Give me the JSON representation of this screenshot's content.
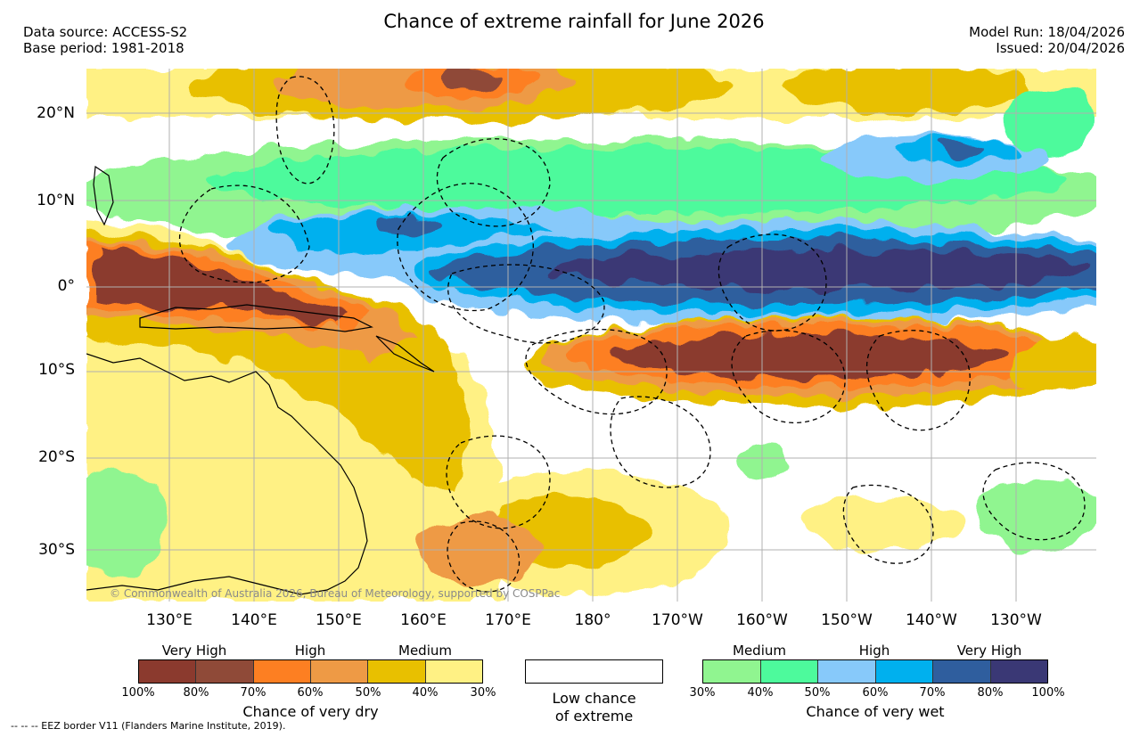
{
  "title": "Chance of extreme rainfall for June 2026",
  "header_left": [
    "Data source: ACCESS-S2",
    "Base period: 1981-2018"
  ],
  "header_right": [
    "Model Run: 18/04/2026",
    "Issued: 20/04/2026"
  ],
  "latitude_labels": [
    "20°N",
    "10°N",
    "0°",
    "10°S",
    "20°S",
    "30°S"
  ],
  "longitude_labels": [
    "130°E",
    "140°E",
    "150°E",
    "160°E",
    "170°E",
    "180°",
    "170°W",
    "160°W",
    "150°W",
    "140°W",
    "130°W"
  ],
  "credit": "© Commonwealth of Australia 2026, Bureau of Meteorology, supported by COSPPac",
  "legend": {
    "dry": {
      "categories": [
        "Very High",
        "High",
        "Medium"
      ],
      "ticks": [
        "100%",
        "80%",
        "70%",
        "60%",
        "50%",
        "40%",
        "30%"
      ],
      "caption": "Chance of very dry",
      "colors": [
        "#8b3a2e",
        "#8f4a38",
        "#fd7f22",
        "#ee9a45",
        "#e8c000",
        "#fff184"
      ]
    },
    "low": {
      "caption_line1": "Low chance",
      "caption_line2": "of extreme"
    },
    "wet": {
      "categories": [
        "Medium",
        "High",
        "Very High"
      ],
      "ticks": [
        "30%",
        "40%",
        "50%",
        "60%",
        "70%",
        "80%",
        "100%"
      ],
      "caption": "Chance of very wet",
      "colors": [
        "#90f590",
        "#4dfa9c",
        "#87c9fa",
        "#00b0ee",
        "#2f5e9e",
        "#3a3875"
      ]
    }
  },
  "eez_note": "-- -- -- EEZ border V11 (Flanders Marine Institute, 2019)."
}
